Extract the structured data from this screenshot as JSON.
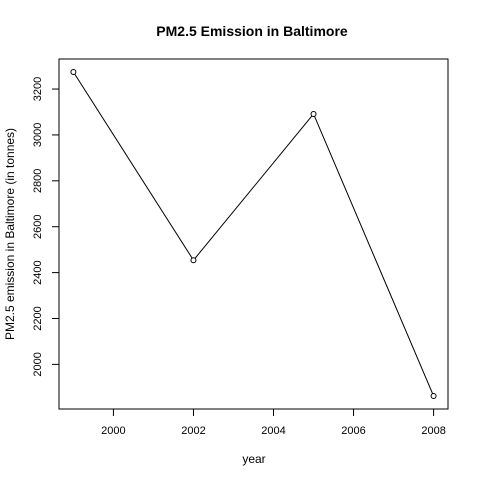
{
  "chart_data": {
    "type": "line",
    "title": "PM2.5 Emission in Baltimore",
    "xlabel": "year",
    "ylabel": "PM2.5 emission in Baltimore (in tonnes)",
    "x": [
      1999,
      2002,
      2005,
      2008
    ],
    "series": [
      {
        "values": [
          3274.18,
          2453.92,
          3091.35,
          1862.28
        ]
      }
    ],
    "xlim": [
      1998.64,
      2008.36
    ],
    "ylim": [
      1805.6,
      3330.9
    ],
    "xticks": [
      2000,
      2002,
      2004,
      2006,
      2008
    ],
    "yticks": [
      2000,
      2200,
      2400,
      2600,
      2800,
      3000,
      3200
    ],
    "point_marker": "open-circle",
    "line_color": "#000000",
    "grid": false
  }
}
